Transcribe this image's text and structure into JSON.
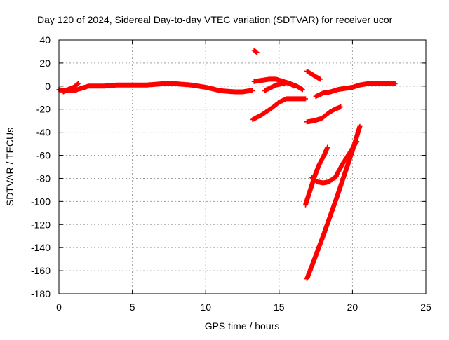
{
  "chart_data": {
    "type": "scatter",
    "title": "Day 120 of 2024, Sidereal Day-to-day VTEC variation (SDTVAR) for receiver ucor",
    "xlabel": "GPS time / hours",
    "ylabel": "SDTVAR / TECUs",
    "xlim": [
      0,
      25
    ],
    "ylim": [
      -180,
      40
    ],
    "xticks": [
      0,
      5,
      10,
      15,
      20,
      25
    ],
    "yticks": [
      -180,
      -160,
      -140,
      -120,
      -100,
      -80,
      -60,
      -40,
      -20,
      0,
      20,
      40
    ],
    "grid": true,
    "marker": "+",
    "color": "#ff0000",
    "segments": [
      {
        "x": [
          0.0,
          0.5,
          1.0,
          1.5,
          2.0,
          3.0,
          4.0,
          5.0,
          6.0,
          7.0,
          8.0,
          9.0,
          10.0,
          11.0,
          12.0,
          12.5,
          13.0,
          13.2
        ],
        "y": [
          -3,
          -4,
          -4,
          -2,
          0,
          0,
          1,
          1,
          1,
          2,
          2,
          1,
          -1,
          -4,
          -5,
          -5,
          -4,
          -4
        ]
      },
      {
        "x": [
          0.3,
          0.6,
          1.0,
          1.3
        ],
        "y": [
          -5,
          -3,
          -1,
          2
        ]
      },
      {
        "x": [
          13.3,
          13.5
        ],
        "y": [
          31,
          29
        ]
      },
      {
        "x": [
          13.3,
          13.8,
          14.3,
          14.8,
          15.3,
          15.8,
          16.0
        ],
        "y": [
          4,
          5,
          6,
          6,
          4,
          2,
          0
        ]
      },
      {
        "x": [
          14.0,
          14.8,
          15.5,
          16.2,
          16.6
        ],
        "y": [
          -4,
          1,
          3,
          0,
          -3
        ]
      },
      {
        "x": [
          13.2,
          13.8,
          14.5,
          15.0,
          15.5,
          16.0,
          16.5,
          16.8
        ],
        "y": [
          -29,
          -25,
          -19,
          -14,
          -11,
          -11,
          -11,
          -11
        ]
      },
      {
        "x": [
          16.9,
          17.4,
          17.8
        ],
        "y": [
          13,
          9,
          6
        ]
      },
      {
        "x": [
          17.5,
          18.0,
          18.5,
          19.0,
          19.5,
          20.0,
          20.5,
          21.0,
          21.5,
          22.0,
          22.5,
          22.9
        ],
        "y": [
          -9,
          -6,
          -5,
          -3,
          -2,
          -1,
          1,
          2,
          2,
          2,
          2,
          2
        ]
      },
      {
        "x": [
          16.9,
          17.4,
          17.9,
          18.4,
          18.8,
          19.2
        ],
        "y": [
          -31,
          -30,
          -28,
          -23,
          -20,
          -18
        ]
      },
      {
        "x": [
          16.8,
          17.1,
          17.4,
          17.7,
          18.1,
          18.3
        ],
        "y": [
          -103,
          -91,
          -79,
          -69,
          -59,
          -53
        ]
      },
      {
        "x": [
          17.2,
          17.6,
          18.0,
          18.4,
          18.7,
          18.9
        ],
        "y": [
          -79,
          -83,
          -84,
          -83,
          -80,
          -78
        ]
      },
      {
        "x": [
          16.9,
          17.5,
          18.0,
          18.5,
          19.0,
          19.5,
          20.0,
          20.5
        ],
        "y": [
          -167,
          -147,
          -130,
          -112,
          -94,
          -75,
          -56,
          -35
        ]
      },
      {
        "x": [
          18.8,
          19.3,
          19.8,
          20.3
        ],
        "y": [
          -80,
          -68,
          -58,
          -48
        ]
      }
    ]
  }
}
